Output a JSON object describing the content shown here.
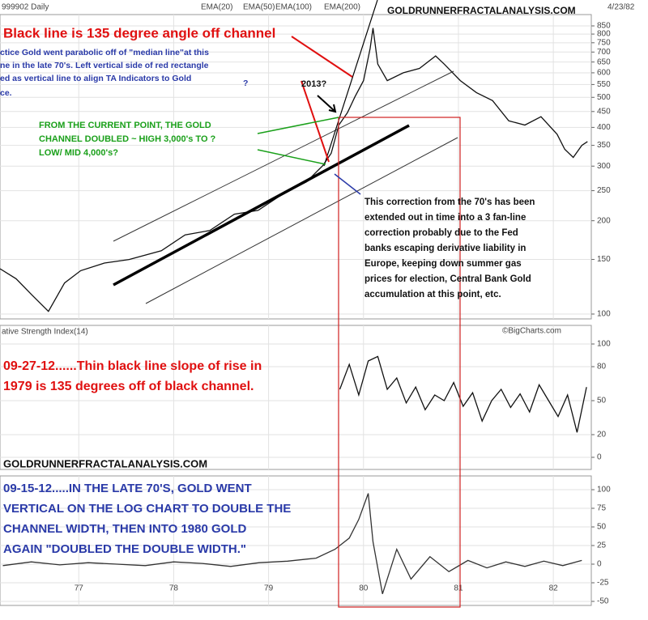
{
  "header": {
    "symbol": "999902 Daily",
    "site": "GOLDRUNNERFRACTALANALYSIS.COM",
    "date": "4/23/82"
  },
  "annotations": {
    "red_title": "Black line is 135 degree angle off channel",
    "blue_note": [
      "ctice Gold went parabolic off of \"median line\"at this",
      "ne in the late 70's.  Left vertical side of red rectangle",
      "ed as vertical line to align TA Indicators to Gold",
      "ce."
    ],
    "question": "?",
    "arrow_label": "2013?",
    "green_note": [
      "FROM THE CURRENT POINT, THE GOLD",
      "CHANNEL DOUBLED ~ HIGH 3,000's TO ?",
      "LOW/ MID 4,000's?"
    ],
    "black_note": [
      "This correction from the 70's has been",
      "extended out in time into a 3 fan-line",
      "correction probably due to the Fed",
      "banks escaping derivative liability in",
      "Europe, keeping down summer gas",
      "prices for election, Central Bank Gold",
      "accumulation at this point, etc."
    ],
    "credit": "©BigCharts.com",
    "red_note": [
      "09-27-12......Thin black line slope of rise in",
      "1979 is 135 degrees off of black channel."
    ],
    "site_label": "GOLDRUNNERFRACTALANALYSIS.COM",
    "blue_lower": [
      "09-15-12.....IN THE LATE 70'S, GOLD WENT",
      "VERTICAL ON THE LOG CHART TO DOUBLE THE",
      "CHANNEL WIDTH, THEN INTO 1980 GOLD",
      "AGAIN \"DOUBLED THE DOUBLE WIDTH.\""
    ]
  },
  "chart_data": [
    {
      "type": "line",
      "log_scale": true,
      "grid": true,
      "ema_labels": [
        "EMA(20)",
        "EMA(50)",
        "EMA(100)",
        "EMA(200)"
      ],
      "x": [
        76.17,
        76.34,
        76.51,
        76.68,
        76.85,
        77.02,
        77.27,
        77.53,
        77.87,
        78.12,
        78.38,
        78.64,
        78.89,
        79.15,
        79.4,
        79.57,
        79.66,
        79.74,
        79.83,
        79.91,
        80.0,
        80.07,
        80.1,
        80.15,
        80.25,
        80.42,
        80.59,
        80.76,
        80.85,
        81.02,
        81.19,
        81.36,
        81.53,
        81.7,
        81.87,
        82.04,
        82.12,
        82.21,
        82.3,
        82.36
      ],
      "series": [
        {
          "color": "#111111",
          "values": [
            140,
            130,
            115,
            102,
            126,
            138,
            146,
            150,
            160,
            180,
            186,
            210,
            216,
            244,
            267,
            301,
            330,
            407,
            446,
            502,
            566,
            720,
            837,
            640,
            566,
            600,
            620,
            680,
            640,
            566,
            518,
            488,
            420,
            407,
            433,
            380,
            340,
            320,
            350,
            360
          ]
        }
      ],
      "xlim": [
        76.17,
        82.4
      ],
      "ylim": [
        100,
        850
      ],
      "yticks": [
        100,
        150,
        200,
        250,
        300,
        350,
        400,
        450,
        500,
        550,
        600,
        650,
        700,
        750,
        800,
        850
      ]
    },
    {
      "type": "line",
      "grid": true,
      "title": "ative Strength Index(14)",
      "x": [
        79.75,
        79.85,
        79.95,
        80.05,
        80.15,
        80.25,
        80.35,
        80.45,
        80.55,
        80.65,
        80.75,
        80.85,
        80.95,
        81.05,
        81.15,
        81.25,
        81.35,
        81.45,
        81.55,
        81.65,
        81.75,
        81.85,
        81.95,
        82.05,
        82.15,
        82.25,
        82.35
      ],
      "series": [
        {
          "color": "#111111",
          "values": [
            60,
            82,
            55,
            85,
            89,
            60,
            70,
            48,
            62,
            42,
            55,
            50,
            66,
            45,
            57,
            32,
            50,
            60,
            44,
            56,
            40,
            64,
            50,
            36,
            55,
            22,
            62
          ]
        }
      ],
      "xlim": [
        76.17,
        82.4
      ],
      "ylim": [
        0,
        100
      ],
      "yticks": [
        0,
        20,
        50,
        80,
        100
      ]
    },
    {
      "type": "line",
      "grid": true,
      "x": [
        76.2,
        76.5,
        76.8,
        77.1,
        77.4,
        77.7,
        78.0,
        78.3,
        78.6,
        78.9,
        79.2,
        79.5,
        79.7,
        79.85,
        79.95,
        80.05,
        80.1,
        80.2,
        80.35,
        80.5,
        80.7,
        80.9,
        81.1,
        81.3,
        81.5,
        81.7,
        81.9,
        82.1,
        82.3
      ],
      "series": [
        {
          "color": "#333333",
          "values": [
            -2,
            3,
            -1,
            2,
            0,
            -2,
            3,
            1,
            -3,
            2,
            4,
            8,
            20,
            35,
            60,
            95,
            30,
            -40,
            20,
            -20,
            10,
            -10,
            5,
            -5,
            3,
            -3,
            4,
            -2,
            5
          ]
        }
      ],
      "xlim": [
        76.17,
        82.4
      ],
      "ylim": [
        -50,
        100
      ],
      "yticks": [
        -50,
        -25,
        0,
        25,
        50,
        75,
        100
      ],
      "xticks": [
        77,
        78,
        79,
        80,
        81,
        82
      ]
    }
  ]
}
